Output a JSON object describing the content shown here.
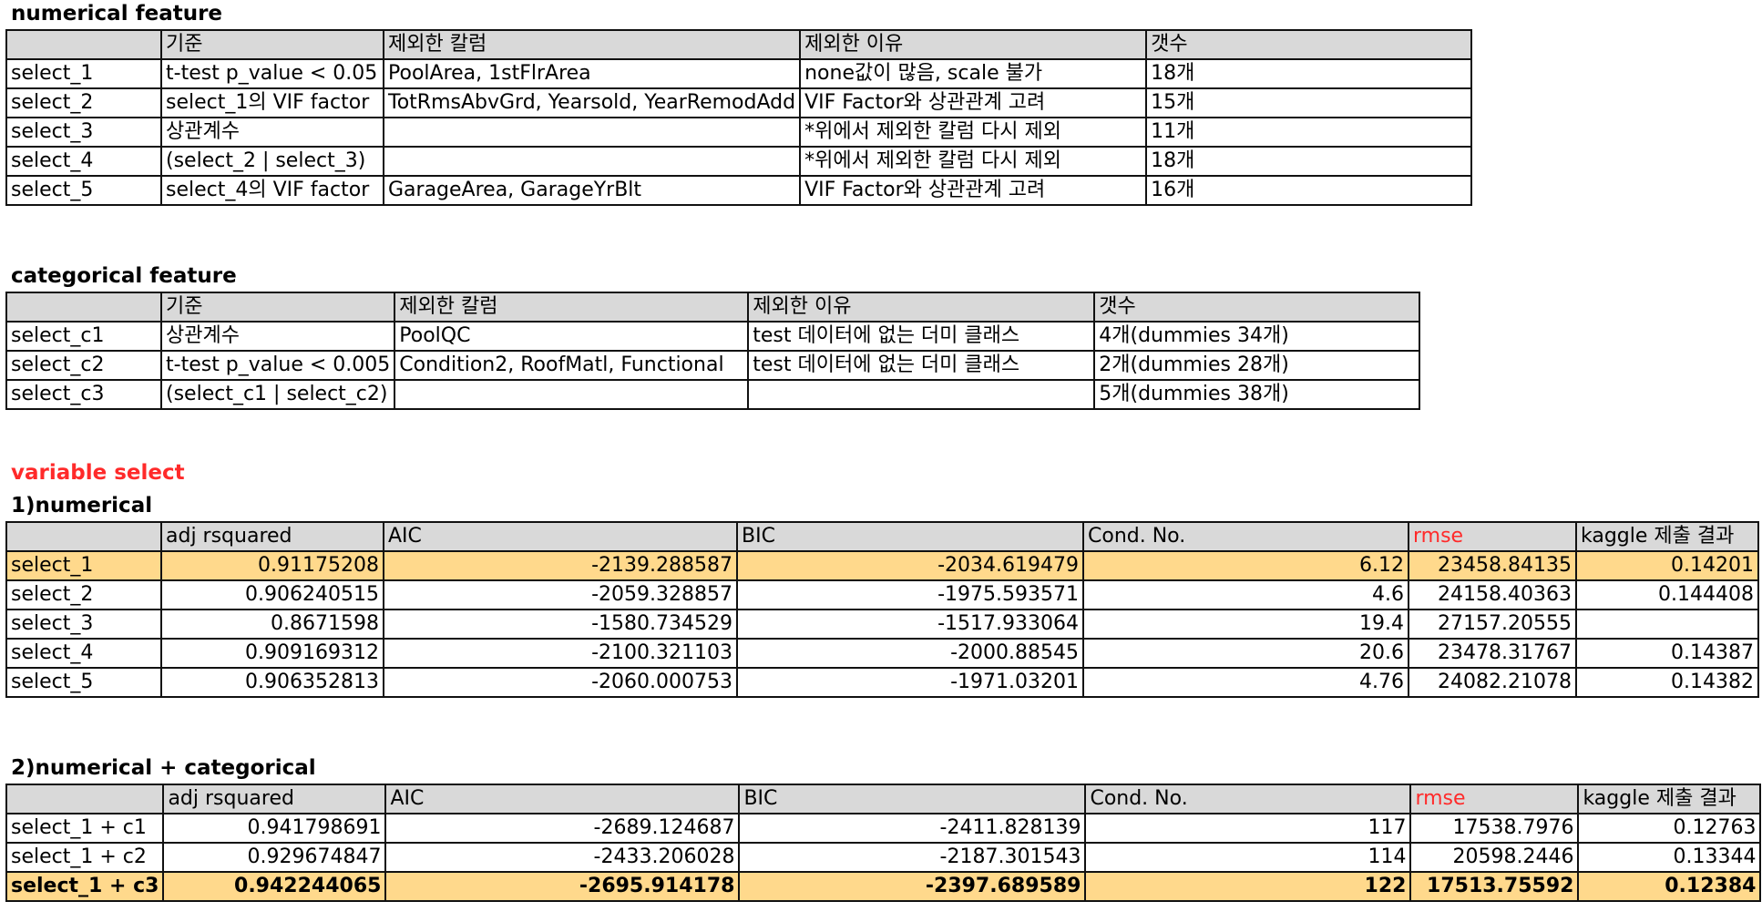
{
  "numerical_feature": {
    "title": "numerical feature",
    "headers": [
      "",
      "기준",
      "제외한 칼럼",
      "제외한 이유",
      "갯수"
    ],
    "rows": [
      [
        "select_1",
        "t-test p_value < 0.05",
        "PoolArea, 1stFlrArea",
        "none값이 많음, scale 불가",
        "18개"
      ],
      [
        "select_2",
        "select_1의 VIF factor",
        "TotRmsAbvGrd, Yearsold, YearRemodAdd",
        "VIF Factor와 상관관계 고려",
        "15개"
      ],
      [
        "select_3",
        "상관계수",
        "",
        "*위에서 제외한 칼럼 다시 제외",
        "11개"
      ],
      [
        "select_4",
        "(select_2 | select_3)",
        "",
        "*위에서 제외한 칼럼 다시 제외",
        "18개"
      ],
      [
        "select_5",
        "select_4의 VIF factor",
        "GarageArea, GarageYrBlt",
        "VIF Factor와 상관관계 고려",
        "16개"
      ]
    ]
  },
  "categorical_feature": {
    "title": "categorical feature",
    "headers": [
      "",
      "기준",
      "제외한 칼럼",
      "제외한 이유",
      "갯수"
    ],
    "rows": [
      [
        "select_c1",
        "상관계수",
        "PoolQC",
        "test 데이터에 없는 더미 클래스",
        "4개(dummies 34개)"
      ],
      [
        "select_c2",
        "t-test p_value < 0.005",
        "Condition2, RoofMatl, Functional",
        "test 데이터에 없는 더미 클래스",
        "2개(dummies 28개)"
      ],
      [
        "select_c3",
        "(select_c1 | select_c2)",
        "",
        "",
        "5개(dummies 38개)"
      ]
    ]
  },
  "variable_select": {
    "title": "variable select",
    "color": "#ff2a2a"
  },
  "numerical": {
    "title": "1)numerical",
    "headers": [
      "",
      "adj rsquared",
      "AIC",
      "BIC",
      "Cond. No.",
      "rmse",
      "kaggle 제출 결과"
    ],
    "rows": [
      [
        "select_1",
        "0.91175208",
        "-2139.288587",
        "-2034.619479",
        "6.12",
        "23458.84135",
        "0.14201"
      ],
      [
        "select_2",
        "0.906240515",
        "-2059.328857",
        "-1975.593571",
        "4.6",
        "24158.40363",
        "0.144408"
      ],
      [
        "select_3",
        "0.8671598",
        "-1580.734529",
        "-1517.933064",
        "19.4",
        "27157.20555",
        ""
      ],
      [
        "select_4",
        "0.909169312",
        "-2100.321103",
        "-2000.88545",
        "20.6",
        "23478.31767",
        "0.14387"
      ],
      [
        "select_5",
        "0.906352813",
        "-2060.000753",
        "-1971.03201",
        "4.76",
        "24082.21078",
        "0.14382"
      ]
    ],
    "highlight_color": "#ffd98c"
  },
  "numerical_categorical": {
    "title": "2)numerical + categorical",
    "headers": [
      "",
      "adj rsquared",
      "AIC",
      "BIC",
      "Cond. No.",
      "rmse",
      "kaggle 제출 결과"
    ],
    "rows": [
      [
        "select_1 + c1",
        "0.941798691",
        "-2689.124687",
        "-2411.828139",
        "117",
        "17538.7976",
        "0.12763"
      ],
      [
        "select_1 + c2",
        "0.929674847",
        "-2433.206028",
        "-2187.301543",
        "114",
        "20598.2446",
        "0.13344"
      ],
      [
        "select_1 + c3",
        "0.942244065",
        "-2695.914178",
        "-2397.689589",
        "122",
        "17513.75592",
        "0.12384"
      ]
    ]
  }
}
